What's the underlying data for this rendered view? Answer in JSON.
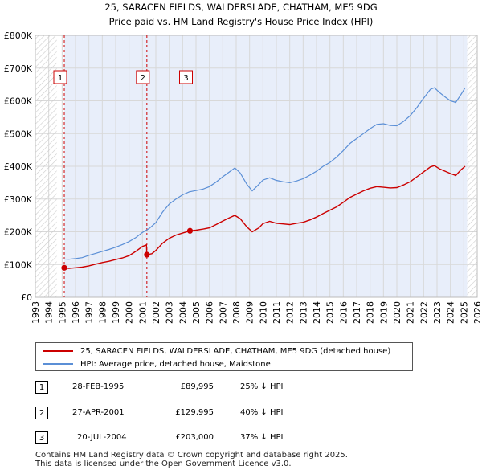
{
  "title_line1": "25, SARACEN FIELDS, WALDERSLADE, CHATHAM, ME5 9DG",
  "title_line2": "Price paid vs. HM Land Registry's House Price Index (HPI)",
  "chart_data": {
    "type": "line",
    "title": "25, SARACEN FIELDS, WALDERSLADE, CHATHAM, ME5 9DG",
    "subtitle": "Price paid vs. HM Land Registry's House Price Index (HPI)",
    "xlim": [
      1993,
      2026
    ],
    "ylim": [
      0,
      800000
    ],
    "x_ticks": [
      "1993",
      "1994",
      "1995",
      "1996",
      "1997",
      "1998",
      "1999",
      "2000",
      "2001",
      "2002",
      "2003",
      "2004",
      "2005",
      "2006",
      "2007",
      "2008",
      "2009",
      "2010",
      "2011",
      "2012",
      "2013",
      "2014",
      "2015",
      "2016",
      "2017",
      "2018",
      "2019",
      "2020",
      "2021",
      "2022",
      "2023",
      "2024",
      "2025",
      "2026"
    ],
    "y_ticks": [
      {
        "value": 0,
        "label": "£0"
      },
      {
        "value": 100000,
        "label": "£100K"
      },
      {
        "value": 200000,
        "label": "£200K"
      },
      {
        "value": 300000,
        "label": "£300K"
      },
      {
        "value": 400000,
        "label": "£400K"
      },
      {
        "value": 500000,
        "label": "£500K"
      },
      {
        "value": 600000,
        "label": "£600K"
      },
      {
        "value": 700000,
        "label": "£700K"
      },
      {
        "value": 800000,
        "label": "£800K"
      }
    ],
    "grid": true,
    "series": [
      {
        "name": "25, SARACEN FIELDS, WALDERSLADE, CHATHAM, ME5 9DG (detached house)",
        "color": "#cc0000",
        "points": [
          [
            1995.16,
            89995
          ],
          [
            1995.5,
            88000
          ],
          [
            1996,
            90000
          ],
          [
            1996.5,
            92000
          ],
          [
            1997,
            96000
          ],
          [
            1997.5,
            101000
          ],
          [
            1998,
            106000
          ],
          [
            1998.5,
            110000
          ],
          [
            1999,
            115000
          ],
          [
            1999.5,
            120000
          ],
          [
            2000,
            127000
          ],
          [
            2000.5,
            140000
          ],
          [
            2001,
            155000
          ],
          [
            2001.3,
            160000
          ],
          [
            2001.33,
            129995
          ],
          [
            2001.7,
            133000
          ],
          [
            2002,
            143000
          ],
          [
            2002.5,
            165000
          ],
          [
            2003,
            180000
          ],
          [
            2003.5,
            190000
          ],
          [
            2004,
            196000
          ],
          [
            2004.55,
            203000
          ],
          [
            2005,
            205000
          ],
          [
            2005.5,
            208000
          ],
          [
            2006,
            212000
          ],
          [
            2006.5,
            222000
          ],
          [
            2007,
            233000
          ],
          [
            2007.5,
            243000
          ],
          [
            2007.9,
            250000
          ],
          [
            2008.3,
            240000
          ],
          [
            2008.8,
            215000
          ],
          [
            2009.2,
            200000
          ],
          [
            2009.7,
            212000
          ],
          [
            2010,
            225000
          ],
          [
            2010.5,
            232000
          ],
          [
            2011,
            226000
          ],
          [
            2011.5,
            224000
          ],
          [
            2012,
            222000
          ],
          [
            2012.5,
            226000
          ],
          [
            2013,
            229000
          ],
          [
            2013.5,
            236000
          ],
          [
            2014,
            245000
          ],
          [
            2014.5,
            256000
          ],
          [
            2015,
            266000
          ],
          [
            2015.5,
            276000
          ],
          [
            2016,
            290000
          ],
          [
            2016.5,
            305000
          ],
          [
            2017,
            315000
          ],
          [
            2017.5,
            325000
          ],
          [
            2018,
            333000
          ],
          [
            2018.5,
            338000
          ],
          [
            2019,
            336000
          ],
          [
            2019.5,
            334000
          ],
          [
            2020,
            335000
          ],
          [
            2020.5,
            343000
          ],
          [
            2021,
            353000
          ],
          [
            2021.5,
            368000
          ],
          [
            2022,
            383000
          ],
          [
            2022.5,
            398000
          ],
          [
            2022.8,
            402000
          ],
          [
            2023.2,
            392000
          ],
          [
            2023.6,
            385000
          ],
          [
            2024,
            378000
          ],
          [
            2024.4,
            372000
          ],
          [
            2024.8,
            390000
          ],
          [
            2025.1,
            400000
          ]
        ]
      },
      {
        "name": "HPI: Average price, detached house, Maidstone",
        "color": "#5b8fd6",
        "points": [
          [
            1995,
            117000
          ],
          [
            1995.5,
            116000
          ],
          [
            1996,
            118000
          ],
          [
            1996.5,
            121000
          ],
          [
            1997,
            128000
          ],
          [
            1997.5,
            134000
          ],
          [
            1998,
            140000
          ],
          [
            1998.5,
            146000
          ],
          [
            1999,
            153000
          ],
          [
            1999.5,
            161000
          ],
          [
            2000,
            170000
          ],
          [
            2000.5,
            182000
          ],
          [
            2001,
            198000
          ],
          [
            2001.5,
            210000
          ],
          [
            2002,
            228000
          ],
          [
            2002.5,
            260000
          ],
          [
            2003,
            285000
          ],
          [
            2003.5,
            300000
          ],
          [
            2004,
            313000
          ],
          [
            2004.5,
            322000
          ],
          [
            2005,
            326000
          ],
          [
            2005.5,
            330000
          ],
          [
            2006,
            338000
          ],
          [
            2006.5,
            352000
          ],
          [
            2007,
            368000
          ],
          [
            2007.5,
            383000
          ],
          [
            2007.9,
            395000
          ],
          [
            2008.3,
            380000
          ],
          [
            2008.8,
            345000
          ],
          [
            2009.2,
            325000
          ],
          [
            2009.7,
            345000
          ],
          [
            2010,
            358000
          ],
          [
            2010.5,
            365000
          ],
          [
            2011,
            357000
          ],
          [
            2011.5,
            353000
          ],
          [
            2012,
            350000
          ],
          [
            2012.5,
            355000
          ],
          [
            2013,
            362000
          ],
          [
            2013.5,
            373000
          ],
          [
            2014,
            385000
          ],
          [
            2014.5,
            400000
          ],
          [
            2015,
            412000
          ],
          [
            2015.5,
            428000
          ],
          [
            2016,
            448000
          ],
          [
            2016.5,
            470000
          ],
          [
            2017,
            485000
          ],
          [
            2017.5,
            500000
          ],
          [
            2018,
            515000
          ],
          [
            2018.5,
            528000
          ],
          [
            2019,
            530000
          ],
          [
            2019.5,
            525000
          ],
          [
            2020,
            524000
          ],
          [
            2020.5,
            537000
          ],
          [
            2021,
            555000
          ],
          [
            2021.5,
            580000
          ],
          [
            2022,
            608000
          ],
          [
            2022.5,
            635000
          ],
          [
            2022.8,
            640000
          ],
          [
            2023.2,
            625000
          ],
          [
            2023.6,
            612000
          ],
          [
            2024,
            600000
          ],
          [
            2024.4,
            595000
          ],
          [
            2024.8,
            620000
          ],
          [
            2025.1,
            640000
          ]
        ]
      }
    ],
    "markers": [
      {
        "label": "1",
        "x": 1995.16,
        "price": 89995
      },
      {
        "label": "2",
        "x": 2001.33,
        "price": 129995
      },
      {
        "label": "3",
        "x": 2004.55,
        "price": 203000
      }
    ]
  },
  "legend": {
    "item1": "25, SARACEN FIELDS, WALDERSLADE, CHATHAM, ME5 9DG (detached house)",
    "item2": "HPI: Average price, detached house, Maidstone",
    "color1": "#cc0000",
    "color2": "#5b8fd6"
  },
  "sales": [
    {
      "num": "1",
      "date": "28-FEB-1995",
      "price": "£89,995",
      "hpi": "25% ↓ HPI"
    },
    {
      "num": "2",
      "date": "27-APR-2001",
      "price": "£129,995",
      "hpi": "40% ↓ HPI"
    },
    {
      "num": "3",
      "date": "20-JUL-2004",
      "price": "£203,000",
      "hpi": "37% ↓ HPI"
    }
  ],
  "footer_line1": "Contains HM Land Registry data © Crown copyright and database right 2025.",
  "footer_line2": "This data is licensed under the Open Government Licence v3.0."
}
